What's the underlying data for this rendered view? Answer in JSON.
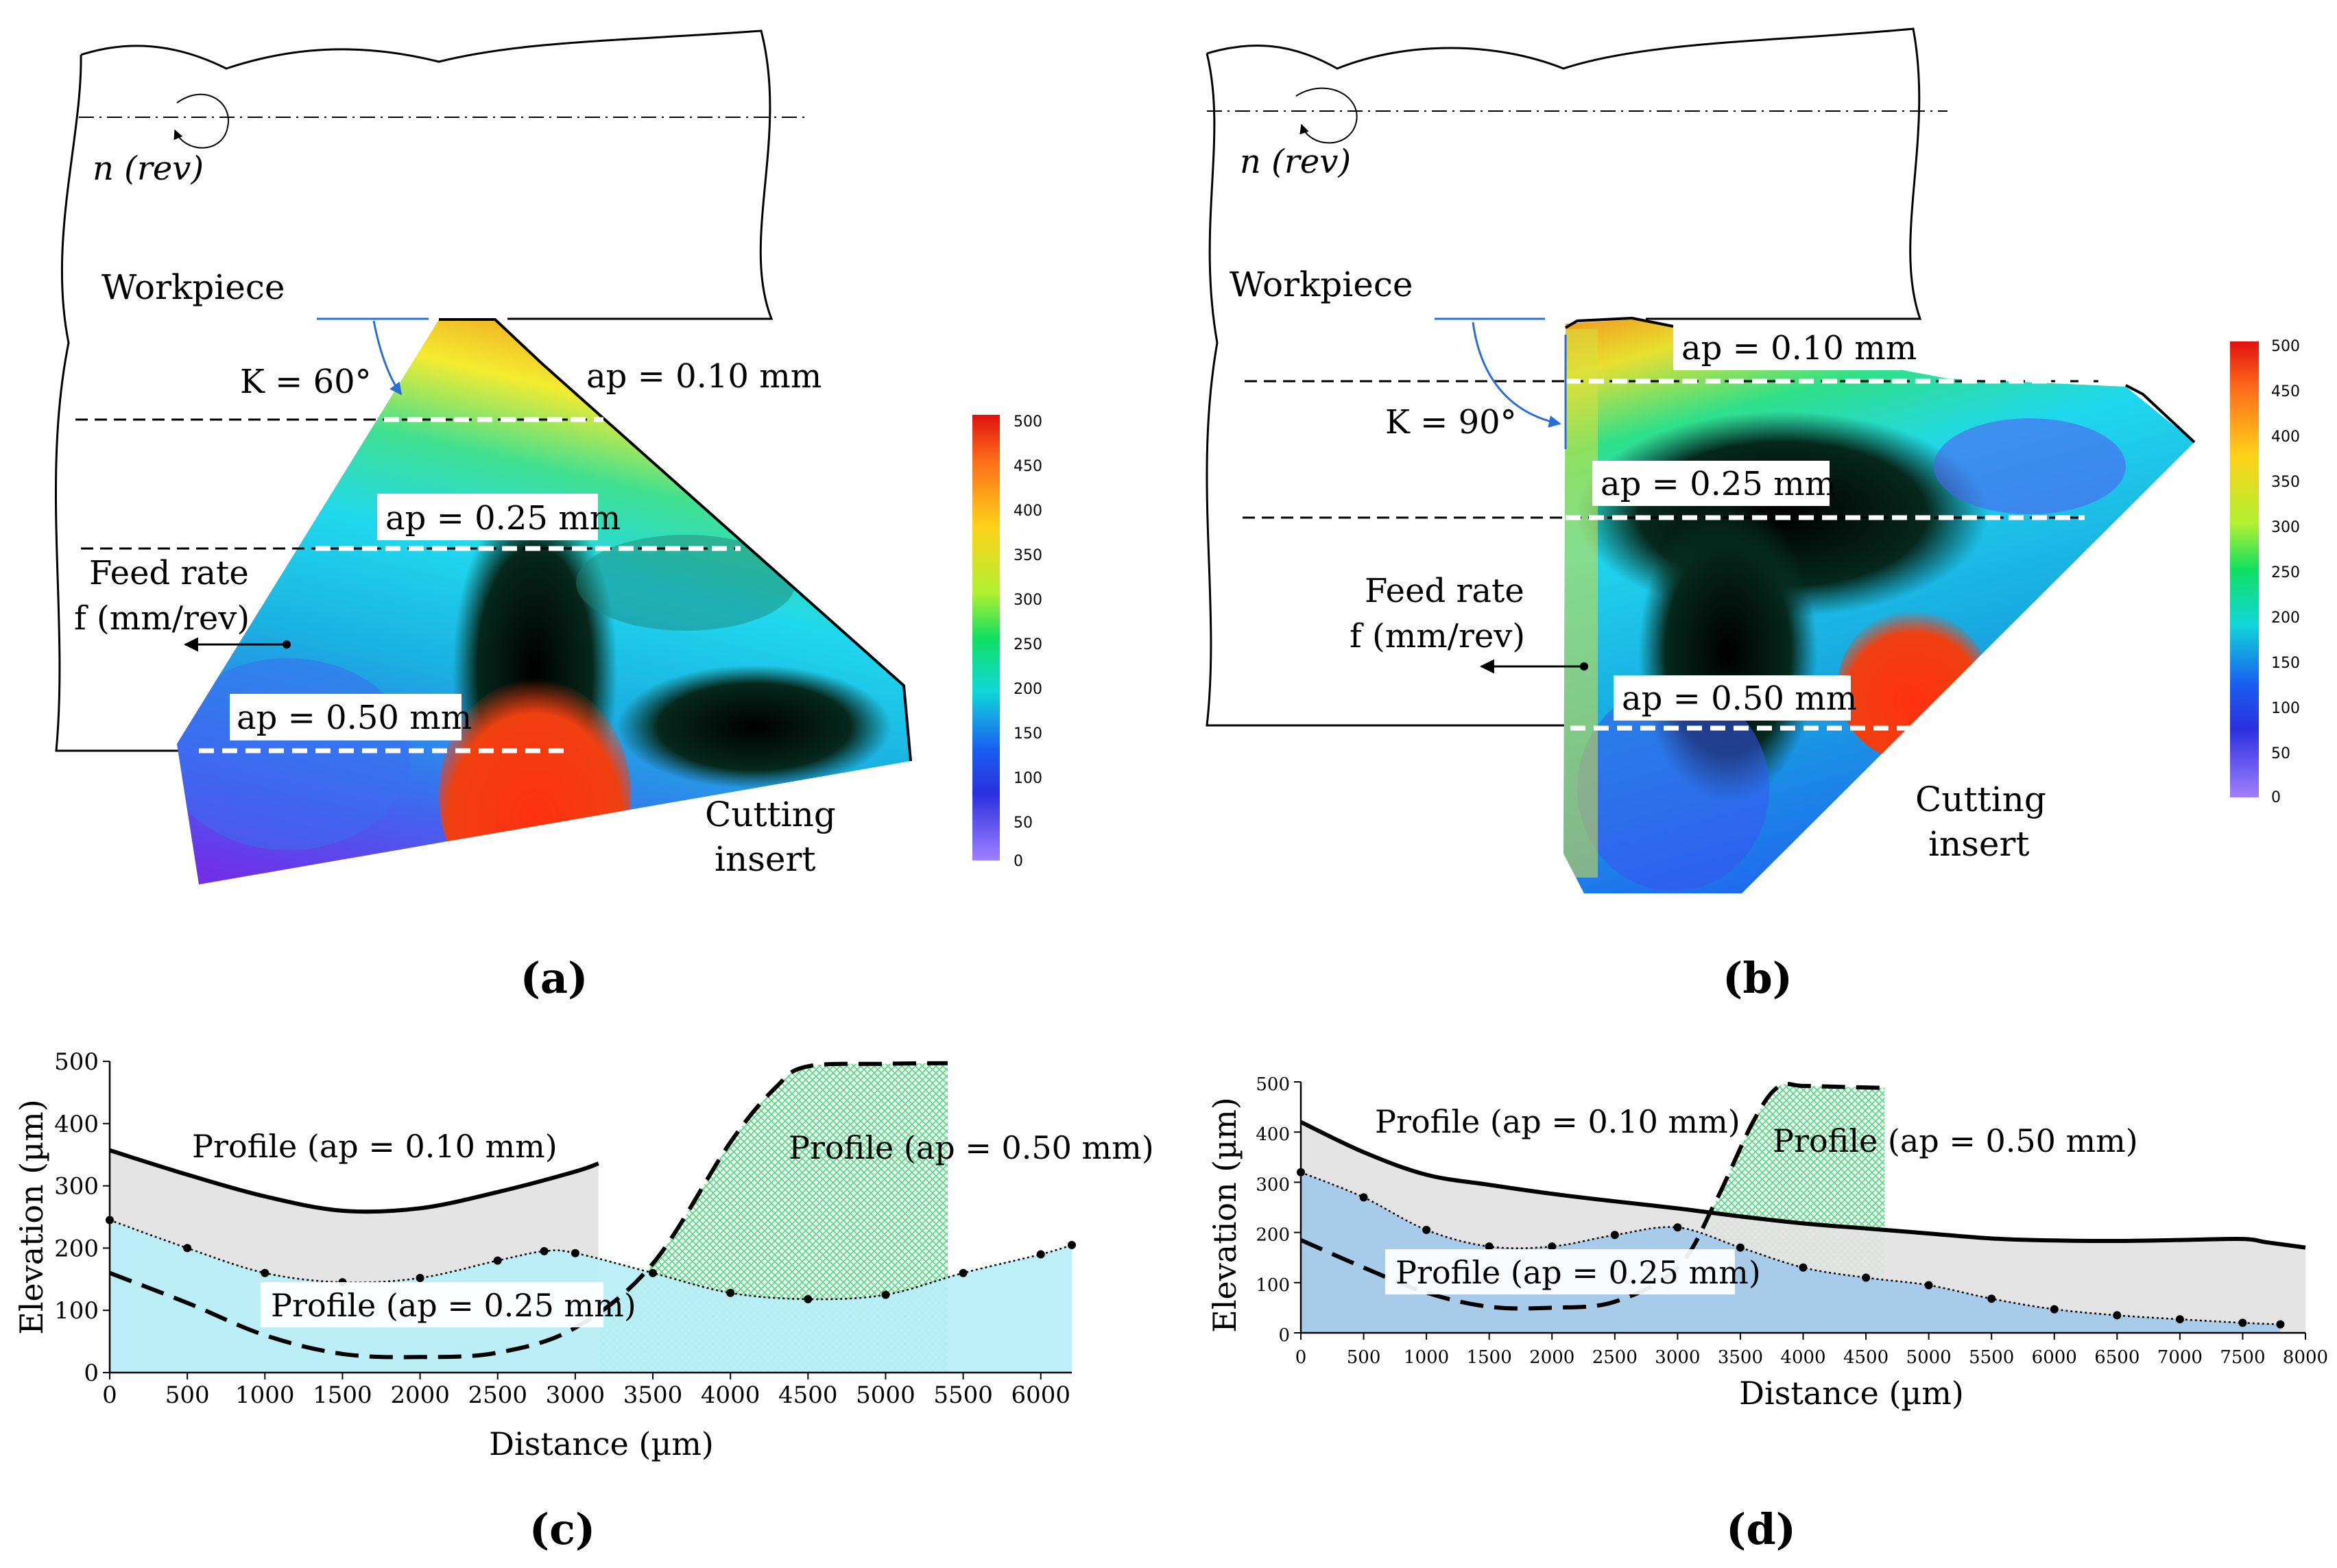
{
  "panel_a": {
    "workpiece": "Workpiece",
    "rotation": "n (rev)",
    "kappa": "K = 60°",
    "ap010": "ap = 0.10 mm",
    "ap025": "ap = 0.25 mm",
    "ap050": "ap = 0.50 mm",
    "feed_line1": "Feed rate",
    "feed_line2": "f (mm/rev)",
    "insert_line1": "Cutting",
    "insert_line2": "insert",
    "colorbar_ticks": [
      "500",
      "450",
      "400",
      "350",
      "300",
      "250",
      "200",
      "150",
      "100",
      "50",
      "0"
    ],
    "caption": "(a)"
  },
  "panel_b": {
    "workpiece": "Workpiece",
    "rotation": "n (rev)",
    "kappa": "K = 90°",
    "ap010": "ap = 0.10 mm",
    "ap025": "ap = 0.25 mm",
    "ap050": "ap = 0.50 mm",
    "feed_line1": "Feed rate",
    "feed_line2": "f (mm/rev)",
    "insert_line1": "Cutting",
    "insert_line2": "insert",
    "colorbar_ticks": [
      "500",
      "450",
      "400",
      "350",
      "300",
      "250",
      "200",
      "150",
      "100",
      "50",
      "0"
    ],
    "caption": "(b)"
  },
  "colors": {
    "profile_010_fill": "#e3e3e3",
    "profile_025_fill_c": "#b8eef7",
    "profile_025_fill_d": "#a4c9ea",
    "profile_050_hatch": "#4fd17c",
    "map_cmap": [
      "#7a3cf0",
      "#2a5df5",
      "#1fd0e8",
      "#1a8a60",
      "#000000",
      "#f0e020",
      "#ff8020",
      "#e03010"
    ]
  },
  "chart_data": [
    {
      "type": "area",
      "panel": "(c)",
      "title": "",
      "xlabel": "Distance (µm)",
      "ylabel": "Elevation (µm)",
      "xlim": [
        0,
        6200
      ],
      "ylim": [
        0,
        500
      ],
      "xticks": [
        0,
        500,
        1000,
        1500,
        2000,
        2500,
        3000,
        3500,
        4000,
        4500,
        5000,
        5500,
        6000
      ],
      "yticks": [
        0,
        100,
        200,
        300,
        400,
        500
      ],
      "series": [
        {
          "name": "Profile (ap = 0.10 mm)",
          "style": "solid",
          "x": [
            0,
            500,
            1000,
            1500,
            2000,
            2500,
            3000,
            3150
          ],
          "y": [
            357,
            318,
            283,
            260,
            264,
            290,
            323,
            336
          ]
        },
        {
          "name": "Profile (ap = 0.25 mm)",
          "style": "dotted-markers",
          "x": [
            0,
            500,
            1000,
            1500,
            2000,
            2500,
            2800,
            3000,
            3500,
            4000,
            4500,
            5000,
            5500,
            6000,
            6200
          ],
          "y": [
            245,
            200,
            160,
            145,
            152,
            180,
            195,
            192,
            160,
            128,
            118,
            125,
            160,
            190,
            205
          ]
        },
        {
          "name": "Profile (ap = 0.50 mm)",
          "style": "dashed",
          "x": [
            0,
            500,
            1000,
            1500,
            2000,
            2500,
            3000,
            3500,
            4000,
            4300,
            4500,
            5000,
            5400
          ],
          "y": [
            160,
            112,
            60,
            30,
            25,
            32,
            72,
            175,
            370,
            460,
            492,
            496,
            497
          ]
        }
      ],
      "labels": [
        "Profile (ap = 0.10 mm)",
        "Profile (ap = 0.25 mm)",
        "Profile (ap = 0.50 mm)"
      ],
      "caption": "(c)"
    },
    {
      "type": "area",
      "panel": "(d)",
      "title": "",
      "xlabel": "Distance (µm)",
      "ylabel": "Elevation (µm)",
      "xlim": [
        0,
        8000
      ],
      "ylim": [
        0,
        500
      ],
      "xticks": [
        0,
        500,
        1000,
        1500,
        2000,
        2500,
        3000,
        3500,
        4000,
        4500,
        5000,
        5500,
        6000,
        6500,
        7000,
        7500,
        8000
      ],
      "yticks": [
        0,
        100,
        200,
        300,
        400,
        500
      ],
      "series": [
        {
          "name": "Profile (ap = 0.10 mm)",
          "style": "solid",
          "x": [
            0,
            500,
            1000,
            1500,
            2000,
            2500,
            3000,
            3500,
            4000,
            4500,
            5000,
            5500,
            6000,
            6500,
            7000,
            7500,
            7700,
            8000
          ],
          "y": [
            420,
            360,
            315,
            295,
            277,
            262,
            248,
            232,
            218,
            208,
            198,
            188,
            184,
            183,
            185,
            187,
            180,
            170
          ]
        },
        {
          "name": "Profile (ap = 0.25 mm)",
          "style": "dotted-markers",
          "x": [
            0,
            500,
            1000,
            1500,
            2000,
            2500,
            3000,
            3500,
            4000,
            4500,
            5000,
            5500,
            6000,
            6500,
            7000,
            7500,
            7800
          ],
          "y": [
            320,
            270,
            205,
            172,
            172,
            195,
            210,
            170,
            130,
            110,
            95,
            68,
            47,
            35,
            27,
            20,
            17
          ]
        },
        {
          "name": "Profile (ap = 0.50 mm)",
          "style": "dashed",
          "x": [
            0,
            500,
            1000,
            1500,
            2000,
            2500,
            3000,
            3300,
            3600,
            3800,
            4000,
            4300,
            4650
          ],
          "y": [
            185,
            130,
            80,
            52,
            50,
            62,
            130,
            260,
            420,
            490,
            492,
            490,
            488
          ]
        }
      ],
      "labels": [
        "Profile (ap = 0.10 mm)",
        "Profile (ap = 0.25 mm)",
        "Profile (ap = 0.50 mm)"
      ],
      "caption": "(d)"
    }
  ]
}
